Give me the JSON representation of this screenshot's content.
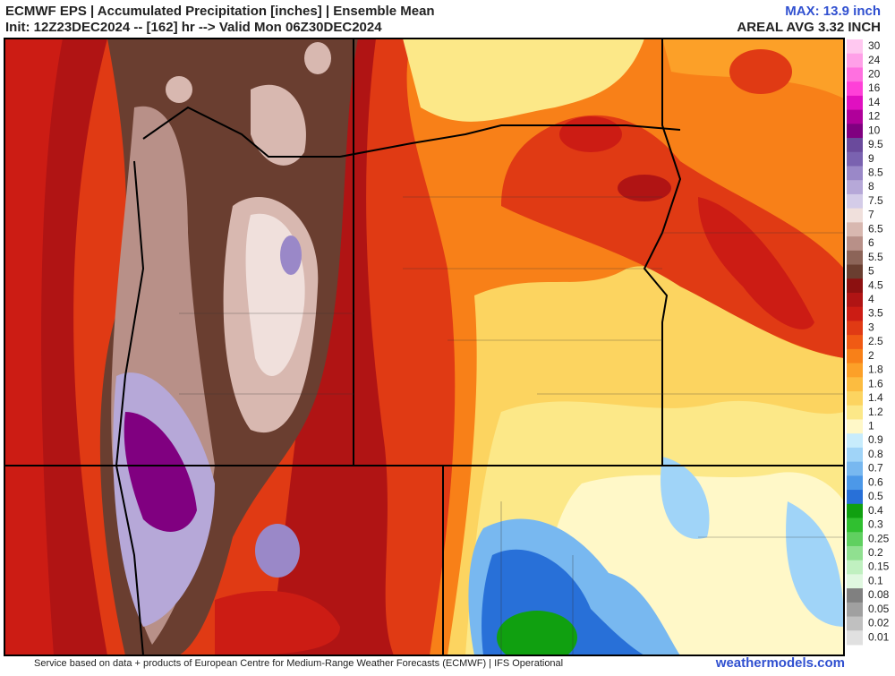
{
  "header": {
    "title": "ECMWF EPS | Accumulated Precipitation [inches] | Ensemble Mean",
    "init": "Init: 12Z23DEC2024 -- [162] hr --> Valid Mon 06Z30DEC2024",
    "max": "MAX: 13.9 inch",
    "areal": "AREAL AVG 3.32 INCH"
  },
  "legend": [
    {
      "label": "30",
      "color": "#ffc8f0"
    },
    {
      "label": "24",
      "color": "#ffa0e8"
    },
    {
      "label": "20",
      "color": "#ff70e0"
    },
    {
      "label": "16",
      "color": "#ff40d8"
    },
    {
      "label": "14",
      "color": "#e010c0"
    },
    {
      "label": "12",
      "color": "#b0009a"
    },
    {
      "label": "10",
      "color": "#800080"
    },
    {
      "label": "9.5",
      "color": "#6a4a9c"
    },
    {
      "label": "9",
      "color": "#7a62b0"
    },
    {
      "label": "8.5",
      "color": "#9a88c8"
    },
    {
      "label": "8",
      "color": "#b6a8d8"
    },
    {
      "label": "7.5",
      "color": "#d4cce8"
    },
    {
      "label": "7",
      "color": "#f0e0dc"
    },
    {
      "label": "6.5",
      "color": "#d8b8b0"
    },
    {
      "label": "6",
      "color": "#b89088"
    },
    {
      "label": "5.5",
      "color": "#8c6458"
    },
    {
      "label": "5",
      "color": "#6a3e30"
    },
    {
      "label": "4.5",
      "color": "#8c1010"
    },
    {
      "label": "4",
      "color": "#b01414"
    },
    {
      "label": "3.5",
      "color": "#cc1c14"
    },
    {
      "label": "3",
      "color": "#e03a14"
    },
    {
      "label": "2.5",
      "color": "#f05a14"
    },
    {
      "label": "2",
      "color": "#f88018"
    },
    {
      "label": "1.8",
      "color": "#fca028"
    },
    {
      "label": "1.6",
      "color": "#fcbc40"
    },
    {
      "label": "1.4",
      "color": "#fcd460"
    },
    {
      "label": "1.2",
      "color": "#fce888"
    },
    {
      "label": "1",
      "color": "#fff8c8"
    },
    {
      "label": "0.9",
      "color": "#c8ecfc"
    },
    {
      "label": "0.8",
      "color": "#a0d4f8"
    },
    {
      "label": "0.7",
      "color": "#78b8f0"
    },
    {
      "label": "0.6",
      "color": "#4c98e8"
    },
    {
      "label": "0.5",
      "color": "#2870d8"
    },
    {
      "label": "0.4",
      "color": "#10a010"
    },
    {
      "label": "0.3",
      "color": "#30c030"
    },
    {
      "label": "0.25",
      "color": "#60d060"
    },
    {
      "label": "0.2",
      "color": "#90e090"
    },
    {
      "label": "0.15",
      "color": "#c0f0c0"
    },
    {
      "label": "0.1",
      "color": "#e0f8e0"
    },
    {
      "label": "0.08",
      "color": "#808080"
    },
    {
      "label": "0.05",
      "color": "#a0a0a0"
    },
    {
      "label": "0.02",
      "color": "#c0c0c0"
    },
    {
      "label": "0.01",
      "color": "#e0e0e0"
    }
  ],
  "footer": {
    "credit": "Service based on data + products of European Centre for Medium-Range Weather Forecasts (ECMWF) | IFS Operational",
    "site": "weathermodels.com"
  }
}
